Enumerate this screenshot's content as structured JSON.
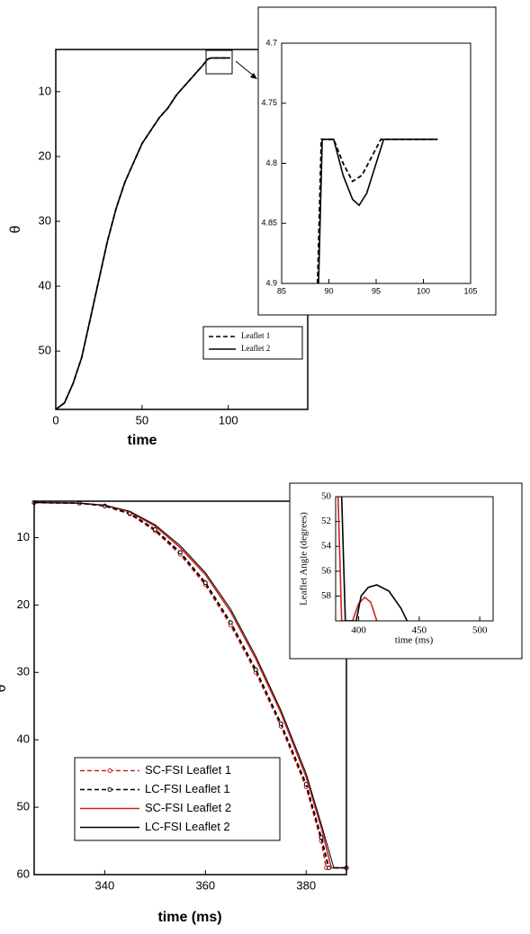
{
  "chart_data": [
    {
      "type": "line",
      "x_label": "time",
      "y_label": "θ",
      "xlim": [
        0,
        146
      ],
      "ylim": [
        3.5,
        59
      ],
      "y_inverted": true,
      "xticks": [
        0,
        50,
        100
      ],
      "yticks": [
        10,
        20,
        30,
        40,
        50
      ],
      "legend": "lower right",
      "series": [
        {
          "name": "Leaflet 1",
          "color": "#000000",
          "dash": true,
          "x": [
            0,
            5,
            10,
            15,
            20,
            25,
            30,
            35,
            40,
            45,
            50,
            55,
            60,
            65,
            70,
            75,
            80,
            85,
            88,
            90,
            95,
            101
          ],
          "values": [
            59,
            58,
            55,
            51,
            45,
            39,
            33,
            28,
            24,
            21,
            18,
            16,
            14,
            12.5,
            10.5,
            9,
            7.5,
            6,
            5,
            4.8,
            4.8,
            4.8
          ]
        },
        {
          "name": "Leaflet 2",
          "color": "#000000",
          "dash": false,
          "x": [
            0,
            5,
            10,
            15,
            20,
            25,
            30,
            35,
            40,
            45,
            50,
            55,
            60,
            65,
            70,
            75,
            80,
            85,
            88,
            90,
            95,
            101
          ],
          "values": [
            59,
            58,
            55,
            51,
            45,
            39,
            33,
            28,
            24,
            21,
            18,
            16,
            14,
            12.5,
            10.5,
            9,
            7.5,
            6,
            5,
            4.8,
            4.8,
            4.8
          ]
        }
      ]
    },
    {
      "type": "line",
      "xlim": [
        85,
        105
      ],
      "ylim": [
        4.7,
        4.9
      ],
      "y_inverted": true,
      "xticks": [
        85,
        90,
        95,
        100,
        105
      ],
      "yticks": [
        4.7,
        4.75,
        4.8,
        4.85,
        4.9
      ],
      "series": [
        {
          "color": "#000000",
          "dash": true,
          "x": [
            88.8,
            89.2,
            90.5,
            91.5,
            92.5,
            93.5,
            94.5,
            95.5,
            101.5
          ],
          "values": [
            4.9,
            4.78,
            4.78,
            4.8,
            4.815,
            4.81,
            4.795,
            4.78,
            4.78
          ]
        },
        {
          "color": "#000000",
          "dash": false,
          "x": [
            88.9,
            89.3,
            90.5,
            91.5,
            92.5,
            93.2,
            94,
            95,
            95.8,
            101.5
          ],
          "values": [
            4.9,
            4.78,
            4.78,
            4.81,
            4.83,
            4.835,
            4.825,
            4.8,
            4.78,
            4.78
          ]
        }
      ]
    },
    {
      "type": "line",
      "x_label": "time (ms)",
      "y_label": "θ",
      "xlim": [
        326,
        388
      ],
      "ylim": [
        4.6,
        60
      ],
      "y_inverted": true,
      "xticks": [
        340,
        360,
        380
      ],
      "yticks": [
        10,
        20,
        30,
        40,
        50,
        60
      ],
      "legend": "lower left",
      "series": [
        {
          "name": "SC-FSI Leaflet 1",
          "color": "#cc2222",
          "dash": true,
          "markers": true,
          "x": [
            326,
            335,
            340,
            345,
            350,
            355,
            360,
            365,
            370,
            375,
            380,
            383,
            384,
            388
          ],
          "values": [
            4.8,
            4.9,
            5.3,
            6.5,
            9,
            12.5,
            17,
            23,
            30,
            38,
            47,
            55,
            59,
            59
          ]
        },
        {
          "name": "LC-FSI Leaflet 1",
          "color": "#000000",
          "dash": true,
          "markers": true,
          "x": [
            326,
            335,
            340,
            345,
            350,
            355,
            360,
            365,
            370,
            375,
            380,
            383,
            384.5,
            388
          ],
          "values": [
            4.8,
            4.9,
            5.3,
            6.4,
            8.8,
            12.2,
            16.7,
            22.6,
            29.6,
            37.6,
            46.6,
            54.5,
            59,
            59
          ]
        },
        {
          "name": "SC-FSI Leaflet 2",
          "color": "#cc2222",
          "dash": false,
          "x": [
            326,
            335,
            340,
            345,
            350,
            355,
            360,
            365,
            370,
            375,
            380,
            383,
            385,
            388
          ],
          "values": [
            4.8,
            4.9,
            5.2,
            6.2,
            8.3,
            11.5,
            15.5,
            21,
            28,
            36,
            45.5,
            53,
            59,
            59
          ]
        },
        {
          "name": "LC-FSI Leaflet 2",
          "color": "#000000",
          "dash": false,
          "x": [
            326,
            335,
            340,
            345,
            350,
            355,
            360,
            365,
            370,
            375,
            380,
            383,
            385.5,
            388
          ],
          "values": [
            4.8,
            4.9,
            5.2,
            6.1,
            8.1,
            11.2,
            15.2,
            20.6,
            27.6,
            35.6,
            45,
            52.5,
            59,
            59
          ]
        }
      ]
    },
    {
      "type": "line",
      "x_label": "time (ms)",
      "y_label": "Leaflet Angle (degrees)",
      "xlim": [
        381,
        511
      ],
      "ylim": [
        50,
        60
      ],
      "y_inverted": true,
      "xticks": [
        400,
        450,
        500
      ],
      "yticks": [
        50,
        52,
        54,
        56,
        58
      ],
      "series": [
        {
          "color": "#cc2222",
          "dash": false,
          "x": [
            383,
            386,
            395,
            400,
            405,
            410,
            415
          ],
          "values": [
            50,
            60,
            60,
            58.6,
            58.1,
            58.5,
            60
          ]
        },
        {
          "color": "#000000",
          "dash": false,
          "x": [
            386,
            389,
            398,
            402,
            408,
            415,
            425,
            435,
            440
          ],
          "values": [
            50,
            60,
            60,
            58,
            57.3,
            57.1,
            57.6,
            59,
            60
          ]
        }
      ]
    }
  ]
}
